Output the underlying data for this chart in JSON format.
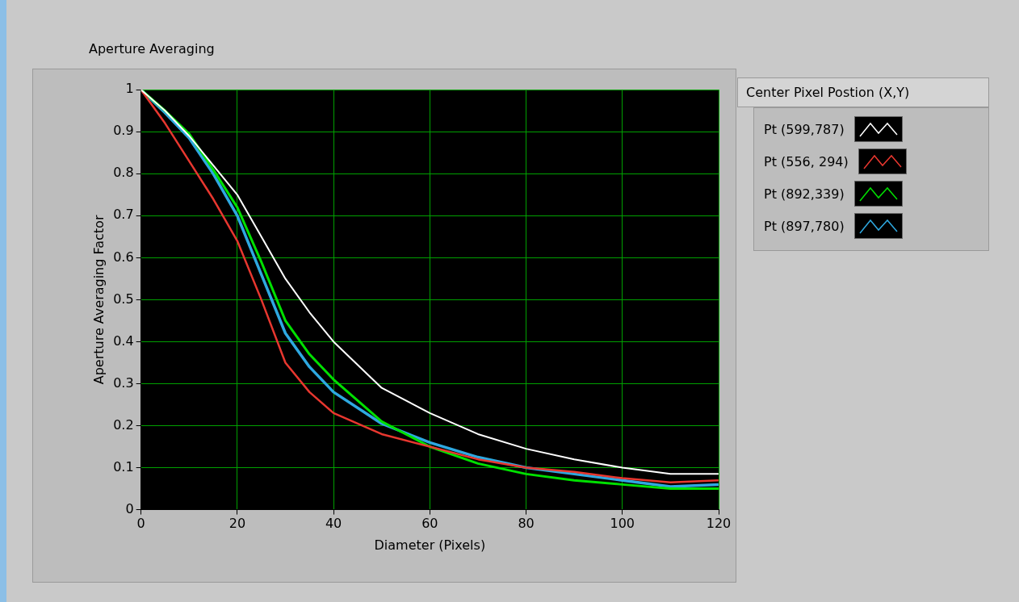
{
  "chart_data": {
    "type": "line",
    "title": "Aperture Averaging",
    "xlabel": "Diameter (Pixels)",
    "ylabel": "Aperture Averaging Factor",
    "legend_title": "Center Pixel Postion (X,Y)",
    "x": [
      0,
      5,
      10,
      15,
      20,
      25,
      30,
      35,
      40,
      50,
      60,
      70,
      80,
      90,
      100,
      110,
      120
    ],
    "series": [
      {
        "name": "Pt (599,787)",
        "color": "#ffffff",
        "values": [
          1,
          0.95,
          0.89,
          0.82,
          0.75,
          0.65,
          0.55,
          0.47,
          0.4,
          0.29,
          0.23,
          0.18,
          0.145,
          0.12,
          0.1,
          0.085,
          0.085
        ]
      },
      {
        "name": "Pt (556, 294)",
        "color": "#e8372f",
        "values": [
          1,
          0.92,
          0.83,
          0.74,
          0.64,
          0.5,
          0.35,
          0.28,
          0.23,
          0.18,
          0.15,
          0.12,
          0.1,
          0.09,
          0.075,
          0.065,
          0.07
        ]
      },
      {
        "name": "Pt (892,339)",
        "color": "#00e000",
        "values": [
          1,
          0.95,
          0.895,
          0.81,
          0.72,
          0.59,
          0.45,
          0.37,
          0.31,
          0.21,
          0.15,
          0.11,
          0.085,
          0.07,
          0.06,
          0.05,
          0.05
        ]
      },
      {
        "name": "Pt (897,780)",
        "color": "#2ea8e0",
        "values": [
          1,
          0.945,
          0.885,
          0.8,
          0.7,
          0.56,
          0.42,
          0.34,
          0.28,
          0.205,
          0.16,
          0.125,
          0.1,
          0.085,
          0.07,
          0.055,
          0.06
        ]
      }
    ],
    "xlim": [
      0,
      120
    ],
    "xticks": [
      0,
      20,
      40,
      60,
      80,
      100,
      120
    ],
    "ylim": [
      0,
      1
    ],
    "yticks": [
      0,
      0.1,
      0.2,
      0.3,
      0.4,
      0.5,
      0.6,
      0.7,
      0.8,
      0.9,
      1
    ],
    "grid": true,
    "legend": "right",
    "marker": "none",
    "line_style": "solid"
  }
}
